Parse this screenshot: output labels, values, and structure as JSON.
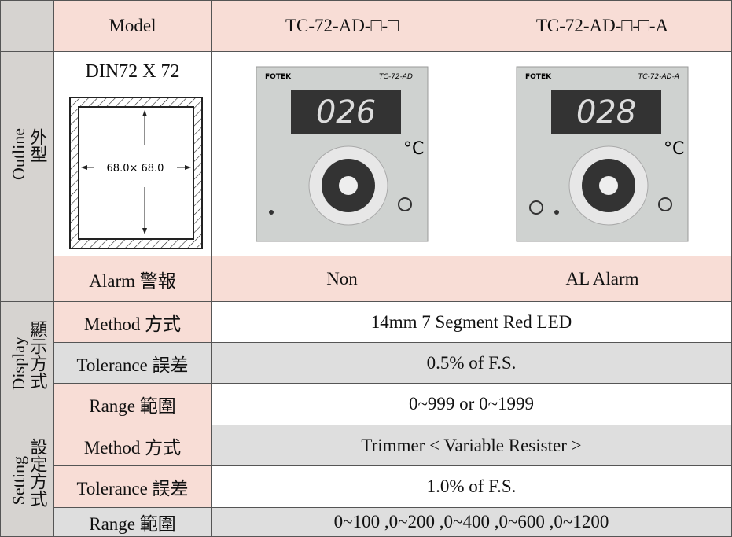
{
  "header": {
    "model": "Model",
    "col1": "TC-72-AD-□-□",
    "col2": "TC-72-AD-□-□-A"
  },
  "outline": {
    "group_en": "Outline",
    "group_zh": "外型",
    "size_title": "DIN72 X 72",
    "dimension": "68.0× 68.0",
    "images": [
      {
        "brand": "FOTEK",
        "model": "TC-72-AD",
        "display": "026"
      },
      {
        "brand": "FOTEK",
        "model": "TC-72-AD-A",
        "display": "028"
      }
    ]
  },
  "alarm": {
    "label": "Alarm 警報",
    "values": [
      "Non",
      "AL Alarm"
    ]
  },
  "display": {
    "group_en": "Display",
    "group_zh": "顯示方式",
    "rows": [
      [
        "Method 方式",
        "14mm 7 Segment Red LED"
      ],
      [
        "Tolerance 誤差",
        "0.5% of F.S."
      ],
      [
        "Range 範圍",
        "0~999 or 0~1999"
      ]
    ]
  },
  "setting": {
    "group_en": "Setting",
    "group_zh": "設定方式",
    "rows": [
      [
        "Method 方式",
        "Trimmer < Variable Resister >"
      ],
      [
        "Tolerance 誤差",
        "1.0% of F.S."
      ],
      [
        "Range 範圍",
        "0~100 ,0~200 ,0~400 ,0~600 ,0~1200"
      ]
    ]
  }
}
